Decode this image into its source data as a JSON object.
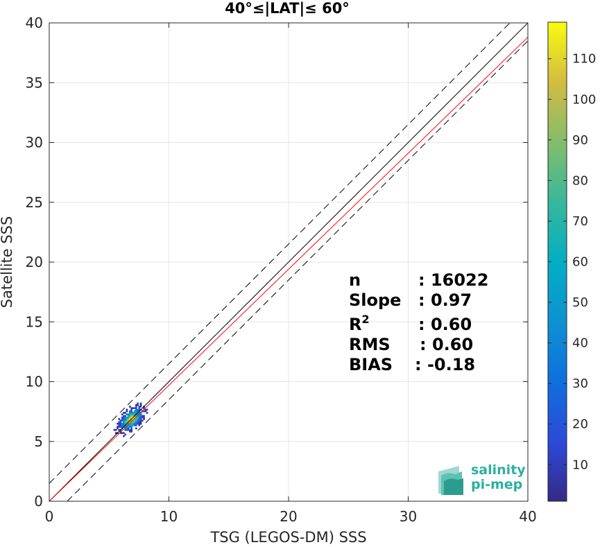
{
  "chart_data": {
    "type": "heatmap",
    "title": "40°≤|LAT|≤ 60°",
    "xlabel": "TSG (LEGOS-DM) SSS",
    "ylabel": "Satellite SSS",
    "xlim": [
      0,
      40
    ],
    "ylim": [
      0,
      40
    ],
    "xticks": [
      "0",
      "10",
      "20",
      "30",
      "40"
    ],
    "yticks": [
      "0",
      "5",
      "10",
      "15",
      "20",
      "25",
      "30",
      "35",
      "40"
    ],
    "grid": true,
    "density_cloud": {
      "center": [
        6.8,
        6.8
      ],
      "x_range": [
        4.2,
        8.3
      ],
      "y_range": [
        3.7,
        9.3
      ],
      "peak_count": 110
    },
    "lines": [
      {
        "name": "fit",
        "color": "#ff0000",
        "slope": 0.97,
        "intercept": 0.0
      },
      {
        "name": "one-to-one",
        "color": "#000000",
        "slope": 1.0,
        "intercept": 0.0
      },
      {
        "name": "one-to-one-upper",
        "color": "#000000",
        "slope": 1.0,
        "intercept": 1.5,
        "dashed": true
      },
      {
        "name": "one-to-one-lower",
        "color": "#000000",
        "slope": 1.0,
        "intercept": -1.5,
        "dashed": true
      }
    ],
    "colorbar": {
      "min": 1,
      "max": 119,
      "ticks": [
        "10",
        "20",
        "30",
        "40",
        "50",
        "60",
        "70",
        "80",
        "90",
        "100",
        "110"
      ],
      "colormap": "parula"
    },
    "stats": [
      {
        "label": "n",
        "value": ": 16022"
      },
      {
        "label": "Slope",
        "value": ": 0.97"
      },
      {
        "label": "R",
        "sup": "2",
        "value": ": 0.60"
      },
      {
        "label": "RMS",
        "value": ": 0.60"
      },
      {
        "label": "BIAS",
        "value": ": -0.18"
      }
    ]
  },
  "logo": {
    "line1": "salinity",
    "line2": "pi-mep"
  }
}
